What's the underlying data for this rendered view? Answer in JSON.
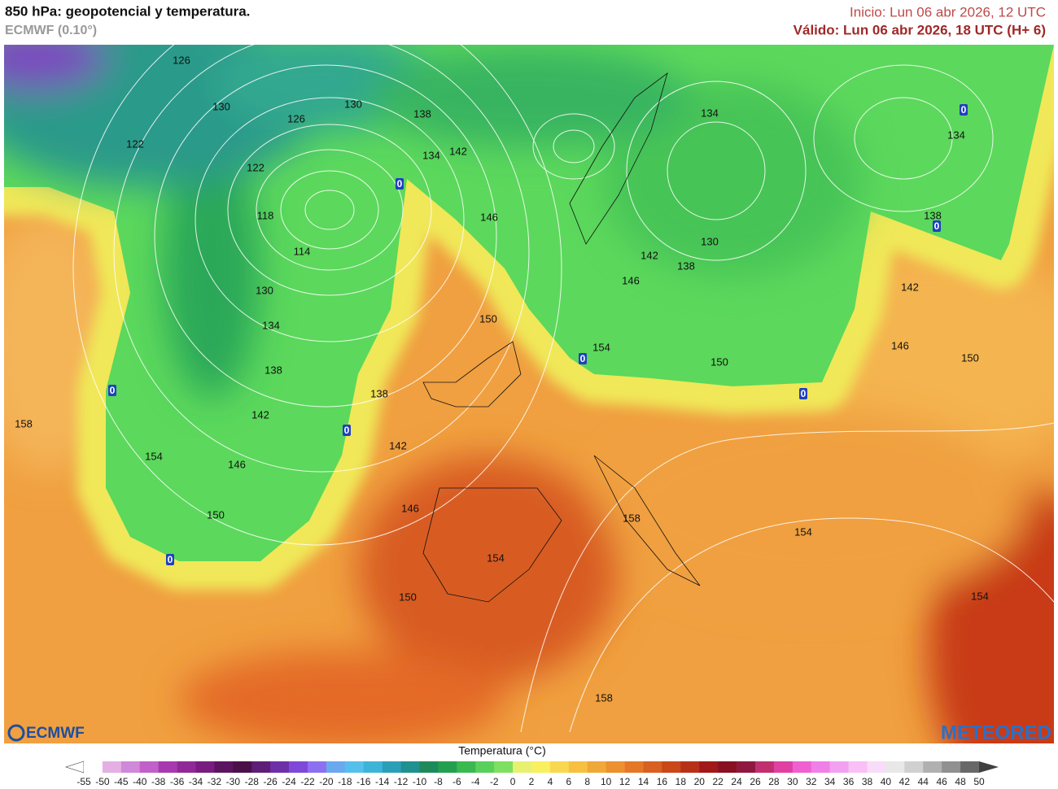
{
  "header": {
    "title": "850 hPa: geopotencial y temperatura.",
    "model": "ECMWF (0.10°)",
    "init": "Inicio: Lun 06 abr 2026, 12 UTC",
    "valid": "Válido: Lun 06 abr 2026, 18 UTC (H+ 6)"
  },
  "map": {
    "contour_labels": [
      "126",
      "130",
      "130",
      "126",
      "138",
      "122",
      "122",
      "134",
      "142",
      "118",
      "146",
      "114",
      "130",
      "134",
      "138",
      "150",
      "138",
      "142",
      "158",
      "142",
      "154",
      "146",
      "146",
      "150",
      "154",
      "150",
      "158",
      "158",
      "154",
      "154",
      "134",
      "134",
      "138",
      "130",
      "142",
      "138",
      "146",
      "142",
      "146",
      "154",
      "150",
      "150"
    ],
    "zero_labels": [
      "0",
      "0",
      "0",
      "0",
      "0",
      "0",
      "0",
      "0"
    ]
  },
  "colorbar": {
    "title": "Temperatura (°C)",
    "ticks": [
      -55,
      -50,
      -45,
      -40,
      -38,
      -36,
      -34,
      -32,
      -30,
      -28,
      -26,
      -24,
      -22,
      -20,
      -18,
      -16,
      -14,
      -12,
      -10,
      -8,
      -6,
      -4,
      -2,
      0,
      2,
      4,
      6,
      8,
      10,
      12,
      14,
      16,
      18,
      20,
      22,
      24,
      26,
      28,
      30,
      32,
      34,
      36,
      38,
      40,
      42,
      44,
      46,
      48,
      50
    ],
    "colors": [
      "#ffffff",
      "#e4b0e4",
      "#d088d8",
      "#c060c8",
      "#a838b0",
      "#902898",
      "#781c80",
      "#5c1460",
      "#4a1048",
      "#5e1e78",
      "#6e30a8",
      "#7e48d8",
      "#8c70f0",
      "#6aa8f0",
      "#56c0ec",
      "#3cb4d8",
      "#2aa0b8",
      "#209090",
      "#1e8a5a",
      "#22a050",
      "#3cb850",
      "#58d05a",
      "#7ee060",
      "#e8f070",
      "#f8f060",
      "#f8d850",
      "#f8c040",
      "#f0a838",
      "#ec9030",
      "#e47828",
      "#d86020",
      "#c84818",
      "#b83018",
      "#a01818",
      "#881020",
      "#901840",
      "#c03070",
      "#e040a0",
      "#f060d0",
      "#f080e8",
      "#f4a0f0",
      "#f8c0f4",
      "#f8dcf8",
      "#e8e8e8",
      "#d0d0d0",
      "#b0b0b0",
      "#909090",
      "#686868"
    ]
  },
  "logos": {
    "left": "ECMWF",
    "right": "METEORED"
  }
}
